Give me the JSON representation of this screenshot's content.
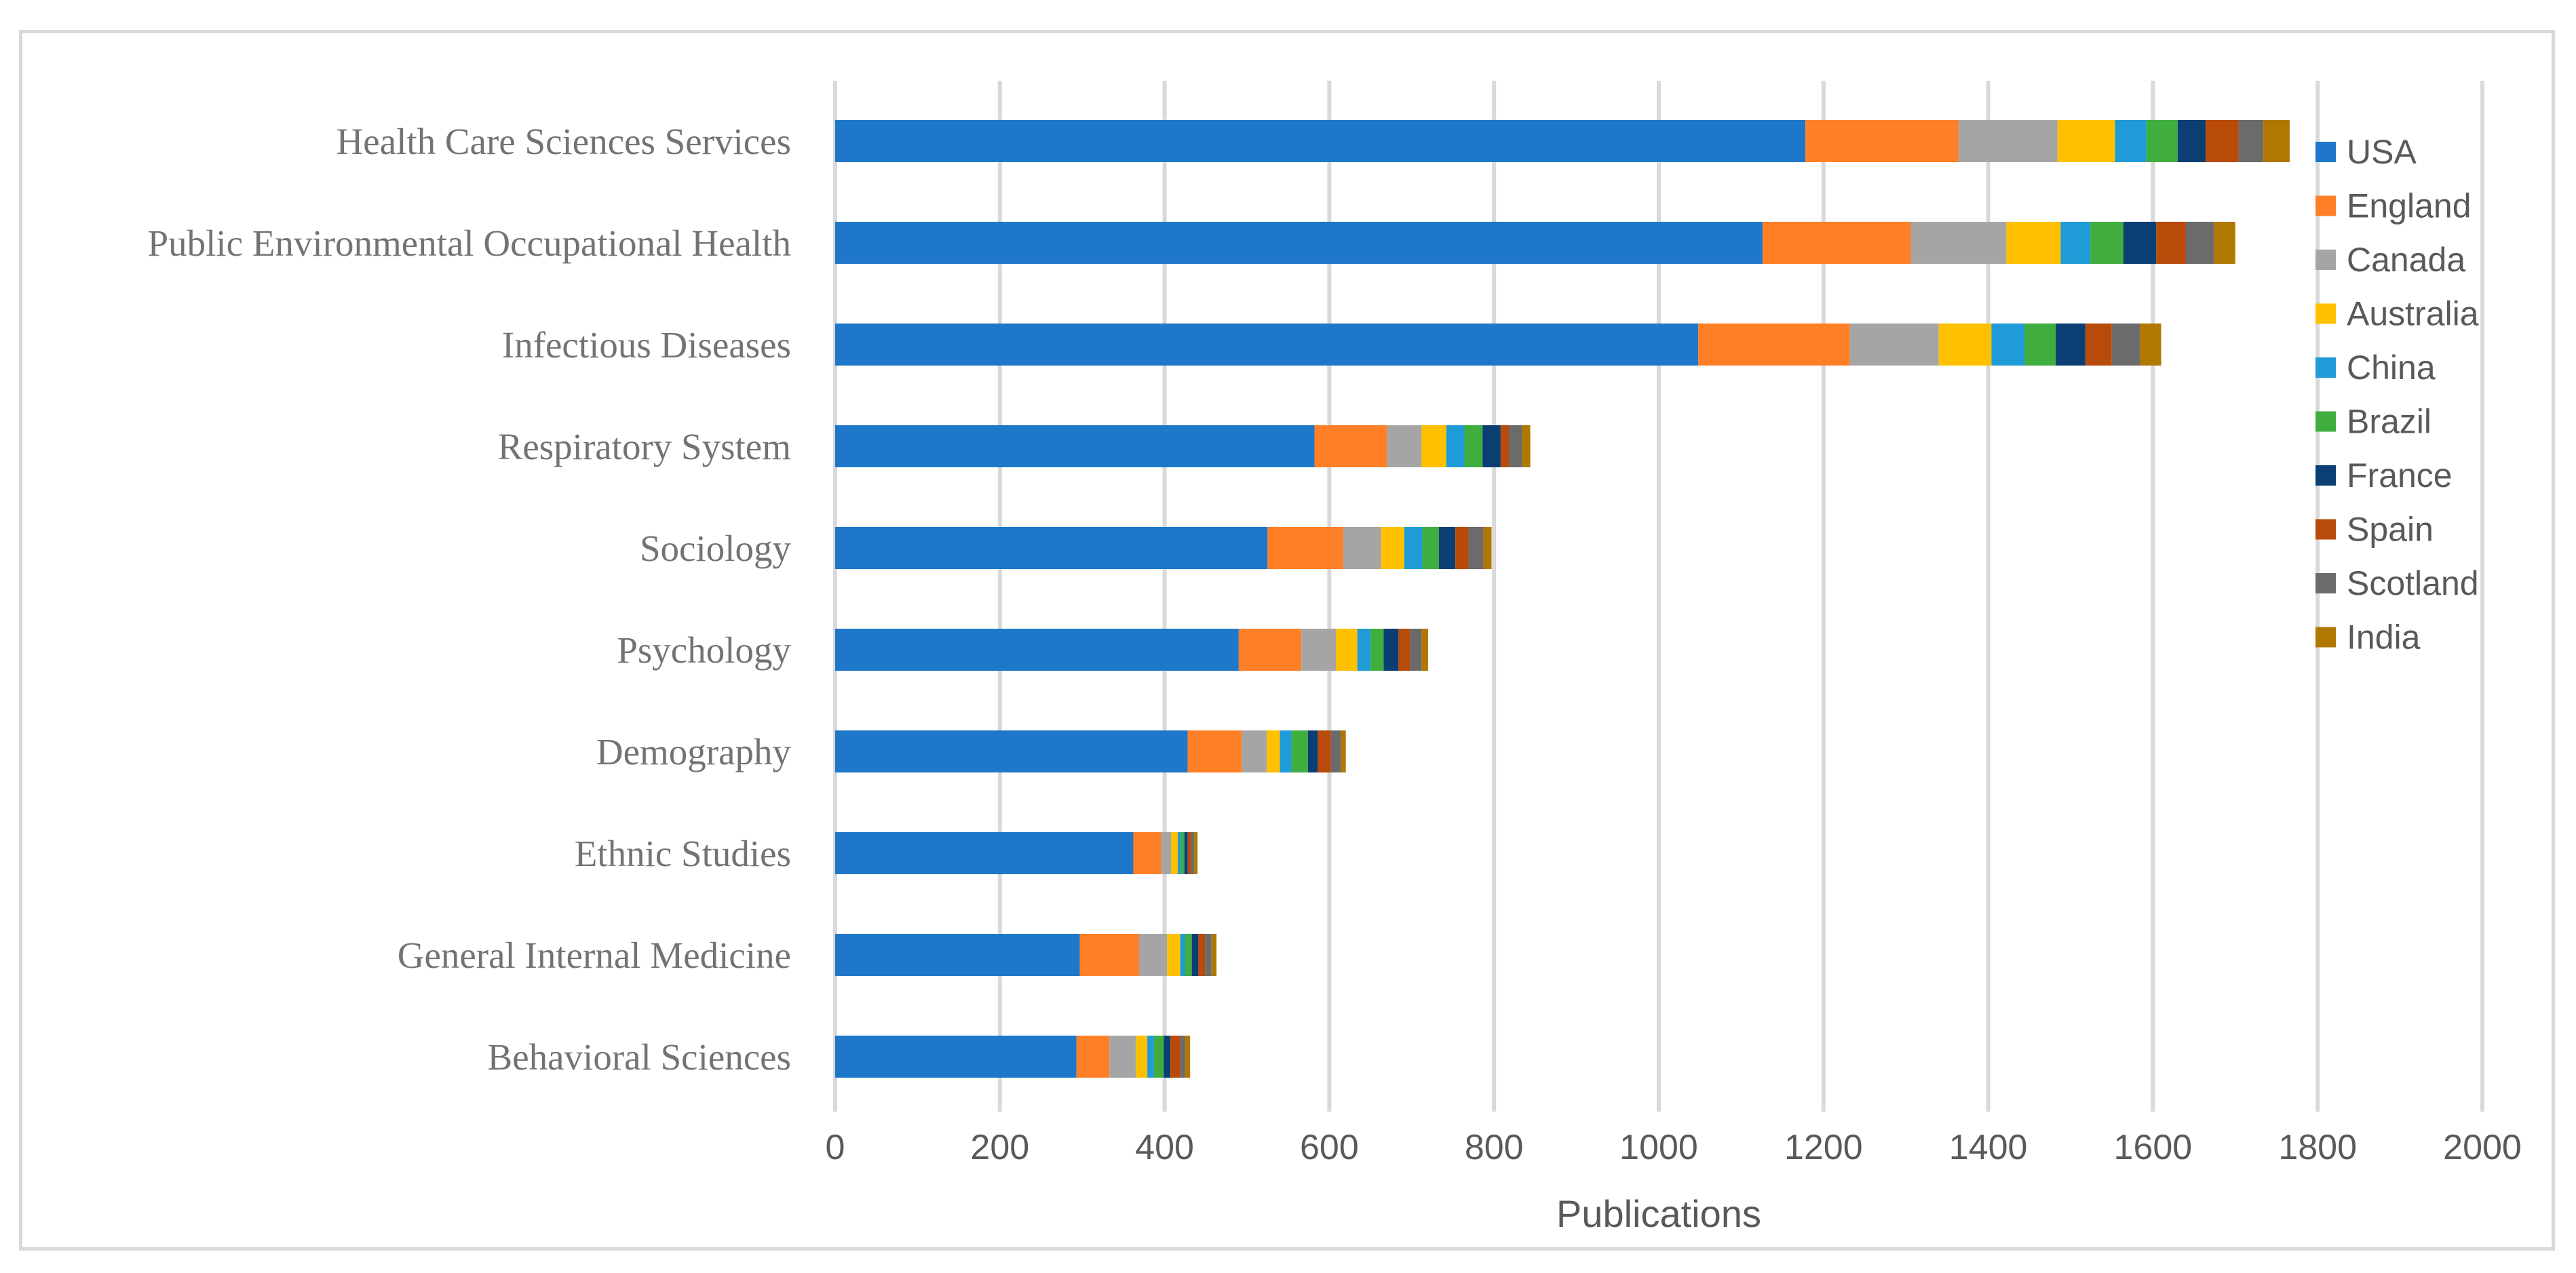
{
  "chart_data": {
    "type": "bar",
    "orientation": "horizontal",
    "stacked": true,
    "title": "",
    "xlabel": "Publications",
    "ylabel": "",
    "xlim": [
      0,
      2000
    ],
    "x_ticks": [
      0,
      200,
      400,
      600,
      800,
      1000,
      1200,
      1400,
      1600,
      1800,
      2000
    ],
    "grid": true,
    "legend_position": "right",
    "categories": [
      "Health Care Sciences Services",
      "Public Environmental Occupational Health",
      "Infectious Diseases",
      "Respiratory System",
      "Sociology",
      "Psychology",
      "Demography",
      "Ethnic Studies",
      "General Internal Medicine",
      "Behavioral Sciences"
    ],
    "series": [
      {
        "name": "USA",
        "color": "#1f77c9",
        "values": [
          1178,
          1126,
          1048,
          582,
          525,
          490,
          428,
          362,
          297,
          293
        ]
      },
      {
        "name": "England",
        "color": "#ff7f27",
        "values": [
          186,
          180,
          184,
          88,
          92,
          76,
          66,
          34,
          72,
          40
        ]
      },
      {
        "name": "Canada",
        "color": "#a5a5a5",
        "values": [
          120,
          116,
          108,
          42,
          46,
          42,
          30,
          12,
          34,
          32
        ]
      },
      {
        "name": "Australia",
        "color": "#ffc000",
        "values": [
          70,
          66,
          64,
          30,
          28,
          26,
          16,
          8,
          16,
          14
        ]
      },
      {
        "name": "China",
        "color": "#1f9bd7",
        "values": [
          38,
          36,
          40,
          22,
          22,
          16,
          14,
          4,
          6,
          8
        ]
      },
      {
        "name": "Brazil",
        "color": "#3fae3f",
        "values": [
          38,
          40,
          38,
          22,
          20,
          16,
          20,
          4,
          8,
          12
        ]
      },
      {
        "name": "France",
        "color": "#0b3f73",
        "values": [
          34,
          40,
          36,
          22,
          20,
          18,
          12,
          4,
          8,
          8
        ]
      },
      {
        "name": "Spain",
        "color": "#b84a0a",
        "values": [
          40,
          36,
          32,
          10,
          16,
          14,
          16,
          4,
          8,
          12
        ]
      },
      {
        "name": "Scotland",
        "color": "#6b6b6b",
        "values": [
          30,
          34,
          34,
          16,
          18,
          14,
          12,
          4,
          8,
          6
        ]
      },
      {
        "name": "India",
        "color": "#b07800",
        "values": [
          32,
          26,
          26,
          10,
          10,
          8,
          6,
          4,
          6,
          6
        ]
      }
    ]
  }
}
